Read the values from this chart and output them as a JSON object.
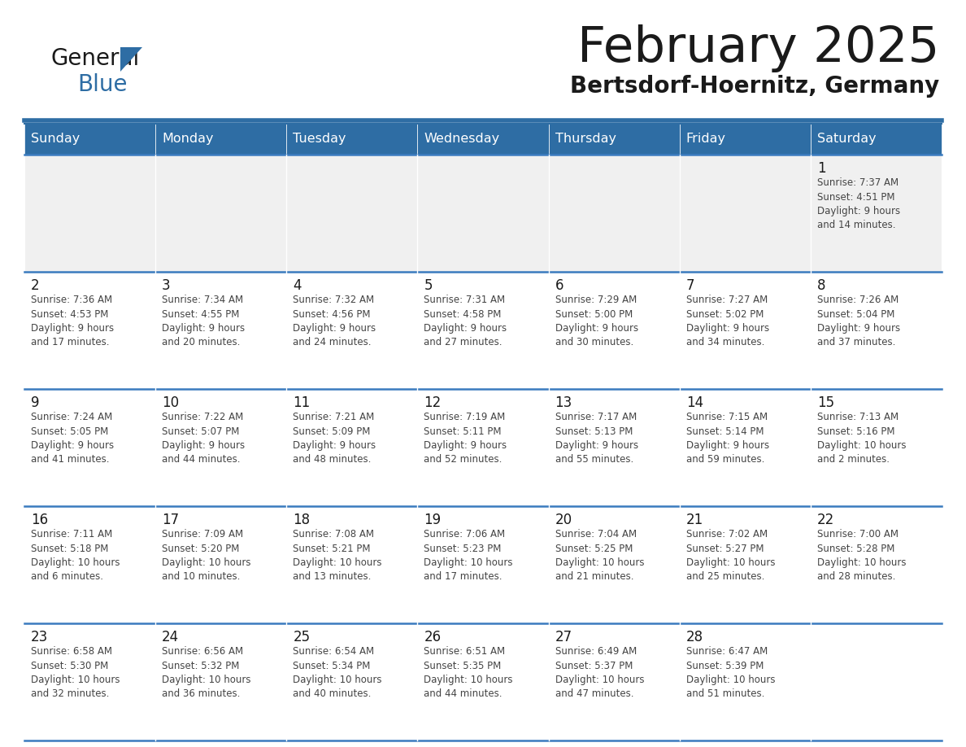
{
  "title": "February 2025",
  "subtitle": "Bertsdorf-Hoernitz, Germany",
  "header_bg": "#2E6DA4",
  "header_text_color": "#FFFFFF",
  "cell_bg_light": "#F0F0F0",
  "cell_bg_white": "#FFFFFF",
  "border_color": "#2E6DA4",
  "title_color": "#1a1a1a",
  "subtitle_color": "#1a1a1a",
  "day_number_color": "#1a1a1a",
  "cell_text_color": "#444444",
  "separator_color": "#3A7BBF",
  "days_of_week": [
    "Sunday",
    "Monday",
    "Tuesday",
    "Wednesday",
    "Thursday",
    "Friday",
    "Saturday"
  ],
  "weeks": [
    [
      {
        "day": null,
        "info": ""
      },
      {
        "day": null,
        "info": ""
      },
      {
        "day": null,
        "info": ""
      },
      {
        "day": null,
        "info": ""
      },
      {
        "day": null,
        "info": ""
      },
      {
        "day": null,
        "info": ""
      },
      {
        "day": 1,
        "info": "Sunrise: 7:37 AM\nSunset: 4:51 PM\nDaylight: 9 hours\nand 14 minutes."
      }
    ],
    [
      {
        "day": 2,
        "info": "Sunrise: 7:36 AM\nSunset: 4:53 PM\nDaylight: 9 hours\nand 17 minutes."
      },
      {
        "day": 3,
        "info": "Sunrise: 7:34 AM\nSunset: 4:55 PM\nDaylight: 9 hours\nand 20 minutes."
      },
      {
        "day": 4,
        "info": "Sunrise: 7:32 AM\nSunset: 4:56 PM\nDaylight: 9 hours\nand 24 minutes."
      },
      {
        "day": 5,
        "info": "Sunrise: 7:31 AM\nSunset: 4:58 PM\nDaylight: 9 hours\nand 27 minutes."
      },
      {
        "day": 6,
        "info": "Sunrise: 7:29 AM\nSunset: 5:00 PM\nDaylight: 9 hours\nand 30 minutes."
      },
      {
        "day": 7,
        "info": "Sunrise: 7:27 AM\nSunset: 5:02 PM\nDaylight: 9 hours\nand 34 minutes."
      },
      {
        "day": 8,
        "info": "Sunrise: 7:26 AM\nSunset: 5:04 PM\nDaylight: 9 hours\nand 37 minutes."
      }
    ],
    [
      {
        "day": 9,
        "info": "Sunrise: 7:24 AM\nSunset: 5:05 PM\nDaylight: 9 hours\nand 41 minutes."
      },
      {
        "day": 10,
        "info": "Sunrise: 7:22 AM\nSunset: 5:07 PM\nDaylight: 9 hours\nand 44 minutes."
      },
      {
        "day": 11,
        "info": "Sunrise: 7:21 AM\nSunset: 5:09 PM\nDaylight: 9 hours\nand 48 minutes."
      },
      {
        "day": 12,
        "info": "Sunrise: 7:19 AM\nSunset: 5:11 PM\nDaylight: 9 hours\nand 52 minutes."
      },
      {
        "day": 13,
        "info": "Sunrise: 7:17 AM\nSunset: 5:13 PM\nDaylight: 9 hours\nand 55 minutes."
      },
      {
        "day": 14,
        "info": "Sunrise: 7:15 AM\nSunset: 5:14 PM\nDaylight: 9 hours\nand 59 minutes."
      },
      {
        "day": 15,
        "info": "Sunrise: 7:13 AM\nSunset: 5:16 PM\nDaylight: 10 hours\nand 2 minutes."
      }
    ],
    [
      {
        "day": 16,
        "info": "Sunrise: 7:11 AM\nSunset: 5:18 PM\nDaylight: 10 hours\nand 6 minutes."
      },
      {
        "day": 17,
        "info": "Sunrise: 7:09 AM\nSunset: 5:20 PM\nDaylight: 10 hours\nand 10 minutes."
      },
      {
        "day": 18,
        "info": "Sunrise: 7:08 AM\nSunset: 5:21 PM\nDaylight: 10 hours\nand 13 minutes."
      },
      {
        "day": 19,
        "info": "Sunrise: 7:06 AM\nSunset: 5:23 PM\nDaylight: 10 hours\nand 17 minutes."
      },
      {
        "day": 20,
        "info": "Sunrise: 7:04 AM\nSunset: 5:25 PM\nDaylight: 10 hours\nand 21 minutes."
      },
      {
        "day": 21,
        "info": "Sunrise: 7:02 AM\nSunset: 5:27 PM\nDaylight: 10 hours\nand 25 minutes."
      },
      {
        "day": 22,
        "info": "Sunrise: 7:00 AM\nSunset: 5:28 PM\nDaylight: 10 hours\nand 28 minutes."
      }
    ],
    [
      {
        "day": 23,
        "info": "Sunrise: 6:58 AM\nSunset: 5:30 PM\nDaylight: 10 hours\nand 32 minutes."
      },
      {
        "day": 24,
        "info": "Sunrise: 6:56 AM\nSunset: 5:32 PM\nDaylight: 10 hours\nand 36 minutes."
      },
      {
        "day": 25,
        "info": "Sunrise: 6:54 AM\nSunset: 5:34 PM\nDaylight: 10 hours\nand 40 minutes."
      },
      {
        "day": 26,
        "info": "Sunrise: 6:51 AM\nSunset: 5:35 PM\nDaylight: 10 hours\nand 44 minutes."
      },
      {
        "day": 27,
        "info": "Sunrise: 6:49 AM\nSunset: 5:37 PM\nDaylight: 10 hours\nand 47 minutes."
      },
      {
        "day": 28,
        "info": "Sunrise: 6:47 AM\nSunset: 5:39 PM\nDaylight: 10 hours\nand 51 minutes."
      },
      {
        "day": null,
        "info": ""
      }
    ]
  ],
  "logo_color_general": "#1a1a1a",
  "logo_color_blue": "#2E6DA4",
  "logo_color_triangle": "#2E6DA4"
}
